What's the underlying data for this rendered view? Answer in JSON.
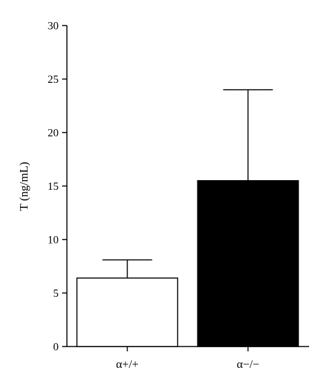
{
  "chart_data": {
    "type": "bar",
    "title": "",
    "xlabel": "",
    "ylabel": "T (ng/mL)",
    "ylim": [
      0,
      30
    ],
    "yticks": [
      0,
      5,
      10,
      15,
      20,
      25,
      30
    ],
    "grid": false,
    "legend": "none",
    "categories": [
      "α+/+",
      "α−/−"
    ],
    "values": [
      6.4,
      15.5
    ],
    "error_upper": [
      8.1,
      24.0
    ],
    "colors": [
      "#ffffff",
      "#000000"
    ],
    "edge_color": "#000000"
  }
}
